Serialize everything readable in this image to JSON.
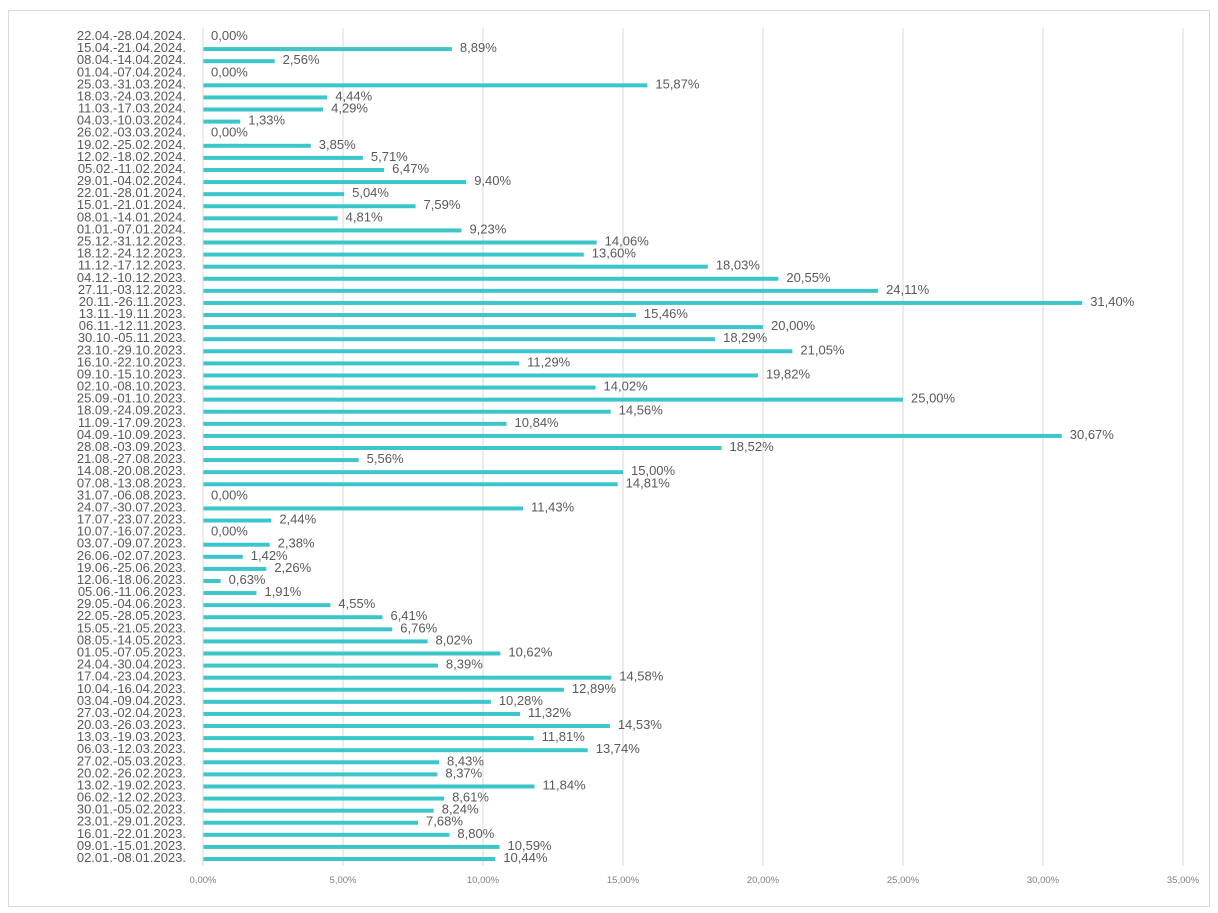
{
  "chart_data": {
    "type": "bar",
    "orientation": "horizontal",
    "title": "",
    "xlabel": "",
    "ylabel": "",
    "xlim": [
      0,
      35
    ],
    "x_ticks": [
      "0,00%",
      "5,00%",
      "10,00%",
      "15,00%",
      "20,00%",
      "25,00%",
      "30,00%",
      "35,00%"
    ],
    "grid": "vertical",
    "legend": "none",
    "bar_color": "#3cc6cc",
    "categories": [
      "22.04.-28.04.2024.",
      "15.04.-21.04.2024.",
      "08.04.-14.04.2024.",
      "01.04.-07.04.2024.",
      "25.03.-31.03.2024.",
      "18.03.-24.03.2024.",
      "11.03.-17.03.2024.",
      "04.03.-10.03.2024.",
      "26.02.-03.03.2024.",
      "19.02.-25.02.2024.",
      "12.02.-18.02.2024.",
      "05.02.-11.02.2024.",
      "29.01.-04.02.2024.",
      "22.01.-28.01.2024.",
      "15.01.-21.01.2024.",
      "08.01.-14.01.2024.",
      "01.01.-07.01.2024.",
      "25.12.-31.12.2023.",
      "18.12.-24.12.2023.",
      "11.12.-17.12.2023.",
      "04.12.-10.12.2023.",
      "27.11.-03.12.2023.",
      "20.11.-26.11.2023.",
      "13.11.-19.11.2023.",
      "06.11.-12.11.2023.",
      "30.10.-05.11.2023.",
      "23.10.-29.10.2023.",
      "16.10.-22.10.2023.",
      "09.10.-15.10.2023.",
      "02.10.-08.10.2023.",
      "25.09.-01.10.2023.",
      "18.09.-24.09.2023.",
      "11.09.-17.09.2023.",
      "04.09.-10.09.2023.",
      "28.08.-03.09.2023.",
      "21.08.-27.08.2023.",
      "14.08.-20.08.2023.",
      "07.08.-13.08.2023.",
      "31.07.-06.08.2023.",
      "24.07.-30.07.2023.",
      "17.07.-23.07.2023.",
      "10.07.-16.07.2023.",
      "03.07.-09.07.2023.",
      "26.06.-02.07.2023.",
      "19.06.-25.06.2023.",
      "12.06.-18.06.2023.",
      "05.06.-11.06.2023.",
      "29.05.-04.06.2023.",
      "22.05.-28.05.2023.",
      "15.05.-21.05.2023.",
      "08.05.-14.05.2023.",
      "01.05.-07.05.2023.",
      "24.04.-30.04.2023.",
      "17.04.-23.04.2023.",
      "10.04.-16.04.2023.",
      "03.04.-09.04.2023.",
      "27.03.-02.04.2023.",
      "20.03.-26.03.2023.",
      "13.03.-19.03.2023.",
      "06.03.-12.03.2023.",
      "27.02.-05.03.2023.",
      "20.02.-26.02.2023.",
      "13.02.-19.02.2023.",
      "06.02.-12.02.2023.",
      "30.01.-05.02.2023.",
      "23.01.-29.01.2023.",
      "16.01.-22.01.2023.",
      "09.01.-15.01.2023.",
      "02.01.-08.01.2023."
    ],
    "values": [
      0.0,
      8.89,
      2.56,
      0.0,
      15.87,
      4.44,
      4.29,
      1.33,
      0.0,
      3.85,
      5.71,
      6.47,
      9.4,
      5.04,
      7.59,
      4.81,
      9.23,
      14.06,
      13.6,
      18.03,
      20.55,
      24.11,
      31.4,
      15.46,
      20.0,
      18.29,
      21.05,
      11.29,
      19.82,
      14.02,
      25.0,
      14.56,
      10.84,
      30.67,
      18.52,
      5.56,
      15.0,
      14.81,
      0.0,
      11.43,
      2.44,
      0.0,
      2.38,
      1.42,
      2.26,
      0.63,
      1.91,
      4.55,
      6.41,
      6.76,
      8.02,
      10.62,
      8.39,
      14.58,
      12.89,
      10.28,
      11.32,
      14.53,
      11.81,
      13.74,
      8.43,
      8.37,
      11.84,
      8.61,
      8.24,
      7.68,
      8.8,
      10.59,
      10.44
    ],
    "value_labels": [
      "0,00%",
      "8,89%",
      "2,56%",
      "0,00%",
      "15,87%",
      "4,44%",
      "4,29%",
      "1,33%",
      "0,00%",
      "3,85%",
      "5,71%",
      "6,47%",
      "9,40%",
      "5,04%",
      "7,59%",
      "4,81%",
      "9,23%",
      "14,06%",
      "13,60%",
      "18,03%",
      "20,55%",
      "24,11%",
      "31,40%",
      "15,46%",
      "20,00%",
      "18,29%",
      "21,05%",
      "11,29%",
      "19,82%",
      "14,02%",
      "25,00%",
      "14,56%",
      "10,84%",
      "30,67%",
      "18,52%",
      "5,56%",
      "15,00%",
      "14,81%",
      "0,00%",
      "11,43%",
      "2,44%",
      "0,00%",
      "2,38%",
      "1,42%",
      "2,26%",
      "0,63%",
      "1,91%",
      "4,55%",
      "6,41%",
      "6,76%",
      "8,02%",
      "10,62%",
      "8,39%",
      "14,58%",
      "12,89%",
      "10,28%",
      "11,32%",
      "14,53%",
      "11,81%",
      "13,74%",
      "8,43%",
      "8,37%",
      "11,84%",
      "8,61%",
      "8,24%",
      "7,68%",
      "8,80%",
      "10,59%",
      "10,44%"
    ]
  }
}
